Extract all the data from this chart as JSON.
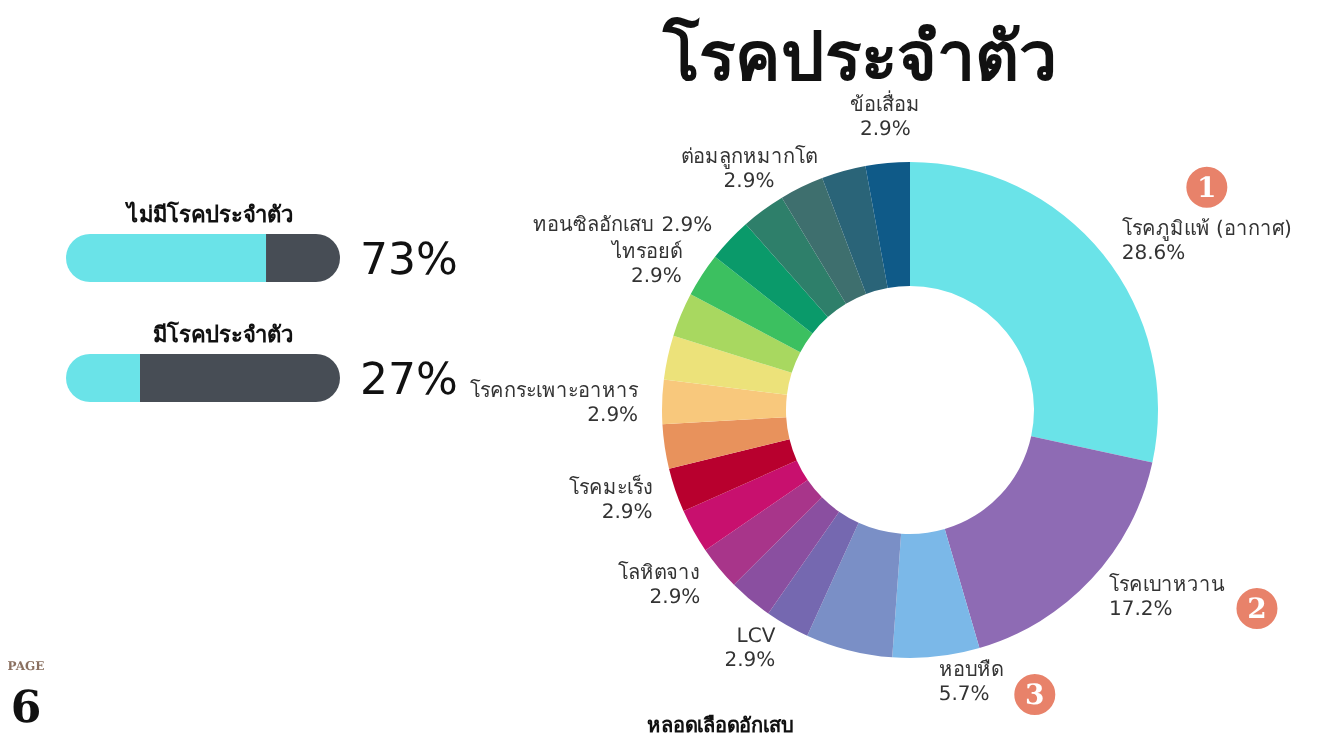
{
  "chart_data": [
    {
      "type": "donut",
      "title": "โรคประจำตัว",
      "categories": [
        "โรคภูมิแพ้ (อากาศ)",
        "โรคเบาหวาน",
        "หอบหืด",
        null,
        "LCV",
        null,
        "โลหิตจาง",
        null,
        "โรคมะเร็ง",
        null,
        "โรคกระเพาะอาหาร",
        null,
        null,
        "ไทรอยด์",
        "ทอนซิลอักเสบ",
        "ต่อมลูกหมากโต",
        null,
        null,
        "ข้อเสื่อม"
      ],
      "values": [
        28.6,
        17.2,
        5.7,
        5.7,
        2.9,
        2.9,
        2.9,
        2.9,
        2.9,
        2.9,
        2.9,
        2.9,
        2.9,
        2.9,
        2.9,
        2.9,
        2.9,
        2.9,
        2.9
      ],
      "value_labels": [
        "28.6%",
        "17.2%",
        "5.7%",
        null,
        "2.9%",
        null,
        "2.9%",
        null,
        "2.9%",
        null,
        "2.9%",
        null,
        null,
        "2.9%",
        "2.9%",
        "2.9%",
        null,
        null,
        "2.9%"
      ],
      "colors": [
        "#6ae3e8",
        "#8e6bb4",
        "#7bb8e8",
        "#7a8fc6",
        "#7568b0",
        "#8a4fa0",
        "#a8358a",
        "#c8106e",
        "#b8002e",
        "#e8925c",
        "#f8c87c",
        "#ece27a",
        "#a8d860",
        "#3cc060",
        "#0a9a6a",
        "#2e7f6a",
        "#3e6f6e",
        "#2a6478",
        "#0f5a88"
      ],
      "annotations": [
        {
          "text": "1",
          "x": "โรคภูมิแพ้ (อากาศ)"
        },
        {
          "text": "2",
          "x": "โรคเบาหวาน"
        },
        {
          "text": "3",
          "x": "หอบหืด"
        },
        "หลอดเลือดอักเสบ"
      ]
    },
    {
      "type": "bar",
      "orientation": "horizontal",
      "stacked": true,
      "categories": [
        "ไม่มีโรคประจำตัว",
        "มีโรคประจำตัว"
      ],
      "series": [
        {
          "color": "#6ae3e8",
          "values": [
            73,
            27
          ],
          "value_labels": [
            "73%",
            "27%"
          ]
        },
        {
          "color": "#474d55",
          "values": [
            27,
            73
          ]
        }
      ],
      "annotations": [
        "PAGE",
        "6"
      ]
    }
  ]
}
